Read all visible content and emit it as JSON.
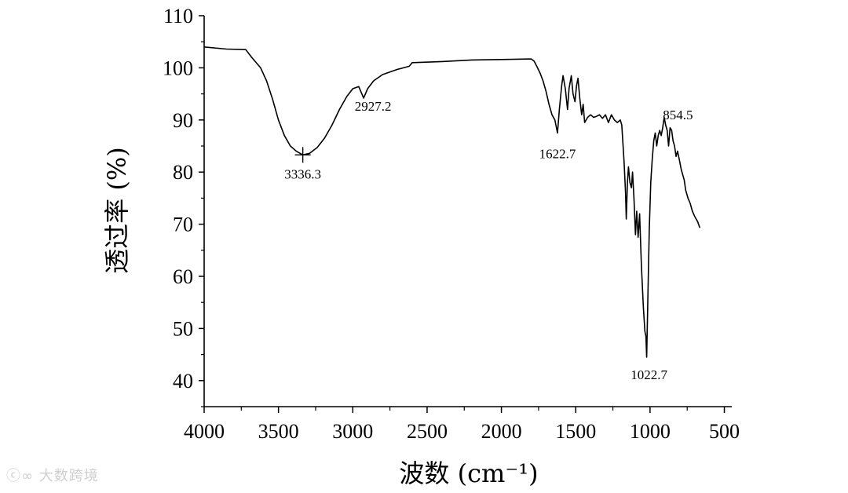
{
  "chart_data": {
    "type": "line",
    "xlabel": "波数 (cm⁻¹)",
    "ylabel": "透过率 (%)",
    "xlim": [
      4000,
      450
    ],
    "ylim": [
      35,
      110
    ],
    "x_ticks": [
      "4000",
      "3500",
      "3000",
      "2500",
      "2000",
      "1500",
      "1000",
      "500"
    ],
    "y_ticks": [
      "40",
      "50",
      "60",
      "70",
      "80",
      "90",
      "100",
      "110"
    ],
    "grid": false,
    "series": [
      {
        "color": "#000000",
        "points": [
          [
            4000,
            104
          ],
          [
            3850,
            103.6
          ],
          [
            3720,
            103.5
          ],
          [
            3680,
            102
          ],
          [
            3620,
            100
          ],
          [
            3580,
            97.5
          ],
          [
            3540,
            94
          ],
          [
            3500,
            90
          ],
          [
            3460,
            87
          ],
          [
            3420,
            85
          ],
          [
            3380,
            84
          ],
          [
            3336.3,
            83.3
          ],
          [
            3290,
            83.6
          ],
          [
            3240,
            84.7
          ],
          [
            3190,
            86.5
          ],
          [
            3140,
            89
          ],
          [
            3090,
            92
          ],
          [
            3040,
            94.5
          ],
          [
            3000,
            96
          ],
          [
            2960,
            96.4
          ],
          [
            2927.2,
            94.2
          ],
          [
            2900,
            96
          ],
          [
            2860,
            97.5
          ],
          [
            2800,
            98.7
          ],
          [
            2700,
            99.7
          ],
          [
            2620,
            100.3
          ],
          [
            2600,
            101
          ],
          [
            2400,
            101.2
          ],
          [
            2200,
            101.5
          ],
          [
            2000,
            101.6
          ],
          [
            1800,
            101.7
          ],
          [
            1780,
            101.3
          ],
          [
            1760,
            100.2
          ],
          [
            1740,
            99
          ],
          [
            1720,
            97.5
          ],
          [
            1700,
            95.5
          ],
          [
            1680,
            93
          ],
          [
            1660,
            91
          ],
          [
            1640,
            90
          ],
          [
            1622.7,
            87.5
          ],
          [
            1610,
            92
          ],
          [
            1595,
            96.5
          ],
          [
            1585,
            98.5
          ],
          [
            1570,
            96
          ],
          [
            1555,
            92
          ],
          [
            1545,
            96
          ],
          [
            1530,
            98.5
          ],
          [
            1518,
            95
          ],
          [
            1505,
            93.5
          ],
          [
            1495,
            96.5
          ],
          [
            1485,
            98
          ],
          [
            1472,
            94
          ],
          [
            1460,
            91
          ],
          [
            1450,
            93
          ],
          [
            1440,
            89.5
          ],
          [
            1420,
            90.5
          ],
          [
            1400,
            91
          ],
          [
            1380,
            90.5
          ],
          [
            1360,
            90.7
          ],
          [
            1340,
            91
          ],
          [
            1320,
            90.3
          ],
          [
            1300,
            91
          ],
          [
            1280,
            89.5
          ],
          [
            1260,
            91
          ],
          [
            1240,
            90
          ],
          [
            1220,
            89.5
          ],
          [
            1200,
            90
          ],
          [
            1190,
            89
          ],
          [
            1175,
            82
          ],
          [
            1165,
            76
          ],
          [
            1160,
            71
          ],
          [
            1152,
            78
          ],
          [
            1145,
            81
          ],
          [
            1135,
            78
          ],
          [
            1125,
            77
          ],
          [
            1118,
            80
          ],
          [
            1108,
            75
          ],
          [
            1098,
            68
          ],
          [
            1090,
            72.5
          ],
          [
            1080,
            67.5
          ],
          [
            1070,
            72
          ],
          [
            1058,
            62
          ],
          [
            1045,
            54
          ],
          [
            1035,
            49.5
          ],
          [
            1028,
            48.5
          ],
          [
            1022.7,
            44.5
          ],
          [
            1015,
            55
          ],
          [
            1005,
            69
          ],
          [
            995,
            78
          ],
          [
            985,
            82.5
          ],
          [
            975,
            86
          ],
          [
            965,
            87.5
          ],
          [
            955,
            85
          ],
          [
            945,
            87
          ],
          [
            935,
            88
          ],
          [
            925,
            87
          ],
          [
            915,
            88.5
          ],
          [
            905,
            90.5
          ],
          [
            895,
            89
          ],
          [
            885,
            88
          ],
          [
            875,
            85
          ],
          [
            865,
            88.5
          ],
          [
            854.5,
            88
          ],
          [
            845,
            86
          ],
          [
            835,
            85
          ],
          [
            825,
            83
          ],
          [
            815,
            84
          ],
          [
            800,
            82
          ],
          [
            790,
            80.5
          ],
          [
            780,
            79.5
          ],
          [
            770,
            78.5
          ],
          [
            760,
            76.5
          ],
          [
            745,
            75
          ],
          [
            730,
            74
          ],
          [
            715,
            72.5
          ],
          [
            700,
            71.5
          ],
          [
            680,
            70.5
          ],
          [
            665,
            69.3
          ]
        ]
      }
    ],
    "annotations": [
      {
        "text": "3336.3",
        "x": 3336.3,
        "y": 83.3,
        "marker": "plus"
      },
      {
        "text": "2927.2",
        "x": 2927.2,
        "y": 94.2,
        "marker": "none"
      },
      {
        "text": "1622.7",
        "x": 1622.7,
        "y": 87.5,
        "marker": "none"
      },
      {
        "text": "854.5",
        "x": 854.5,
        "y": 88,
        "marker": "none"
      },
      {
        "text": "1022.7",
        "x": 1022.7,
        "y": 44.5,
        "marker": "none"
      }
    ]
  },
  "watermark": {
    "text": "大数跨境"
  }
}
